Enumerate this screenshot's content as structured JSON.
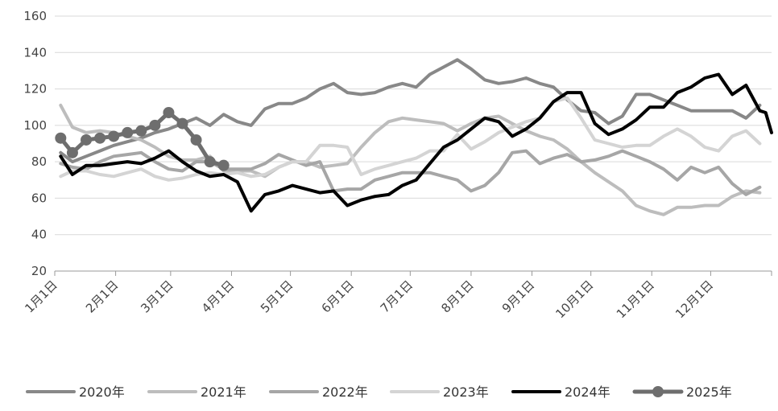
{
  "chart_data": {
    "type": "line",
    "title": "",
    "xlabel": "",
    "ylabel": "",
    "ylim": [
      20,
      160
    ],
    "yticks": [
      20,
      40,
      60,
      80,
      100,
      120,
      140,
      160
    ],
    "x_tick_labels": [
      "1月1日",
      "2月1日",
      "3月1日",
      "4月1日",
      "5月1日",
      "6月1日",
      "7月1日",
      "8月1日",
      "9月1日",
      "10月1日",
      "11月1日",
      "12月1日"
    ],
    "x_tick_days": [
      1,
      32,
      60,
      91,
      121,
      152,
      182,
      213,
      244,
      274,
      305,
      335
    ],
    "x_range_days": [
      1,
      366
    ],
    "grid": "horizontal",
    "legend_position": "bottom",
    "series": [
      {
        "name": "2020年",
        "color": "#888888",
        "marker": false,
        "points": [
          [
            4,
            85
          ],
          [
            10,
            80
          ],
          [
            17,
            83
          ],
          [
            24,
            86
          ],
          [
            31,
            89
          ],
          [
            38,
            91
          ],
          [
            45,
            93
          ],
          [
            52,
            96
          ],
          [
            59,
            98
          ],
          [
            66,
            101
          ],
          [
            73,
            104
          ],
          [
            80,
            100
          ],
          [
            87,
            106
          ],
          [
            94,
            102
          ],
          [
            101,
            100
          ],
          [
            108,
            109
          ],
          [
            115,
            112
          ],
          [
            122,
            112
          ],
          [
            129,
            115
          ],
          [
            136,
            120
          ],
          [
            143,
            123
          ],
          [
            150,
            118
          ],
          [
            157,
            117
          ],
          [
            164,
            118
          ],
          [
            171,
            121
          ],
          [
            178,
            123
          ],
          [
            185,
            121
          ],
          [
            192,
            128
          ],
          [
            199,
            132
          ],
          [
            206,
            136
          ],
          [
            213,
            131
          ],
          [
            220,
            125
          ],
          [
            227,
            123
          ],
          [
            234,
            124
          ],
          [
            241,
            126
          ],
          [
            248,
            123
          ],
          [
            255,
            121
          ],
          [
            262,
            114
          ],
          [
            269,
            108
          ],
          [
            276,
            107
          ],
          [
            283,
            101
          ],
          [
            290,
            105
          ],
          [
            297,
            117
          ],
          [
            304,
            117
          ],
          [
            311,
            114
          ],
          [
            318,
            111
          ],
          [
            325,
            108
          ],
          [
            332,
            108
          ],
          [
            339,
            108
          ],
          [
            346,
            108
          ],
          [
            353,
            104
          ],
          [
            360,
            111
          ]
        ]
      },
      {
        "name": "2021年",
        "color": "#bdbdbd",
        "marker": false,
        "points": [
          [
            4,
            111
          ],
          [
            10,
            99
          ],
          [
            17,
            96
          ],
          [
            24,
            97
          ],
          [
            31,
            96
          ],
          [
            38,
            94
          ],
          [
            45,
            92
          ],
          [
            52,
            88
          ],
          [
            59,
            83
          ],
          [
            66,
            81
          ],
          [
            73,
            81
          ],
          [
            80,
            83
          ],
          [
            87,
            75
          ],
          [
            94,
            75
          ],
          [
            101,
            75
          ],
          [
            108,
            72
          ],
          [
            115,
            77
          ],
          [
            122,
            80
          ],
          [
            129,
            80
          ],
          [
            136,
            77
          ],
          [
            143,
            78
          ],
          [
            150,
            79
          ],
          [
            157,
            88
          ],
          [
            164,
            96
          ],
          [
            171,
            102
          ],
          [
            178,
            104
          ],
          [
            185,
            103
          ],
          [
            192,
            102
          ],
          [
            199,
            101
          ],
          [
            206,
            97
          ],
          [
            213,
            101
          ],
          [
            220,
            104
          ],
          [
            227,
            105
          ],
          [
            234,
            101
          ],
          [
            241,
            97
          ],
          [
            248,
            94
          ],
          [
            255,
            92
          ],
          [
            262,
            87
          ],
          [
            269,
            80
          ],
          [
            276,
            74
          ],
          [
            283,
            69
          ],
          [
            290,
            64
          ],
          [
            297,
            56
          ],
          [
            304,
            53
          ],
          [
            311,
            51
          ],
          [
            318,
            55
          ],
          [
            325,
            55
          ],
          [
            332,
            56
          ],
          [
            339,
            56
          ],
          [
            346,
            61
          ],
          [
            353,
            64
          ],
          [
            360,
            63
          ]
        ]
      },
      {
        "name": "2022年",
        "color": "#a6a6a6",
        "marker": false,
        "points": [
          [
            4,
            79
          ],
          [
            10,
            77
          ],
          [
            17,
            76
          ],
          [
            24,
            80
          ],
          [
            31,
            83
          ],
          [
            38,
            84
          ],
          [
            45,
            85
          ],
          [
            52,
            80
          ],
          [
            59,
            76
          ],
          [
            66,
            75
          ],
          [
            73,
            80
          ],
          [
            80,
            80
          ],
          [
            87,
            76
          ],
          [
            94,
            76
          ],
          [
            101,
            76
          ],
          [
            108,
            79
          ],
          [
            115,
            84
          ],
          [
            122,
            81
          ],
          [
            129,
            78
          ],
          [
            136,
            80
          ],
          [
            143,
            64
          ],
          [
            150,
            65
          ],
          [
            157,
            65
          ],
          [
            164,
            70
          ],
          [
            171,
            72
          ],
          [
            178,
            74
          ],
          [
            185,
            74
          ],
          [
            192,
            74
          ],
          [
            199,
            72
          ],
          [
            206,
            70
          ],
          [
            213,
            64
          ],
          [
            220,
            67
          ],
          [
            227,
            74
          ],
          [
            234,
            85
          ],
          [
            241,
            86
          ],
          [
            248,
            79
          ],
          [
            255,
            82
          ],
          [
            262,
            84
          ],
          [
            269,
            80
          ],
          [
            276,
            81
          ],
          [
            283,
            83
          ],
          [
            290,
            86
          ],
          [
            297,
            83
          ],
          [
            304,
            80
          ],
          [
            311,
            76
          ],
          [
            318,
            70
          ],
          [
            325,
            77
          ],
          [
            332,
            74
          ],
          [
            339,
            77
          ],
          [
            346,
            68
          ],
          [
            353,
            62
          ],
          [
            360,
            66
          ]
        ]
      },
      {
        "name": "2023年",
        "color": "#d4d4d4",
        "marker": false,
        "points": [
          [
            4,
            72
          ],
          [
            10,
            75
          ],
          [
            17,
            75
          ],
          [
            24,
            73
          ],
          [
            31,
            72
          ],
          [
            38,
            74
          ],
          [
            45,
            76
          ],
          [
            52,
            72
          ],
          [
            59,
            70
          ],
          [
            66,
            71
          ],
          [
            73,
            73
          ],
          [
            80,
            74
          ],
          [
            87,
            73
          ],
          [
            94,
            74
          ],
          [
            101,
            72
          ],
          [
            108,
            73
          ],
          [
            115,
            77
          ],
          [
            122,
            80
          ],
          [
            129,
            80
          ],
          [
            136,
            89
          ],
          [
            143,
            89
          ],
          [
            150,
            88
          ],
          [
            157,
            73
          ],
          [
            164,
            76
          ],
          [
            171,
            78
          ],
          [
            178,
            80
          ],
          [
            185,
            82
          ],
          [
            192,
            86
          ],
          [
            199,
            86
          ],
          [
            206,
            95
          ],
          [
            213,
            87
          ],
          [
            220,
            91
          ],
          [
            227,
            96
          ],
          [
            234,
            99
          ],
          [
            241,
            102
          ],
          [
            248,
            104
          ],
          [
            255,
            113
          ],
          [
            262,
            115
          ],
          [
            269,
            104
          ],
          [
            276,
            92
          ],
          [
            283,
            90
          ],
          [
            290,
            88
          ],
          [
            297,
            89
          ],
          [
            304,
            89
          ],
          [
            311,
            94
          ],
          [
            318,
            98
          ],
          [
            325,
            94
          ],
          [
            332,
            88
          ],
          [
            339,
            86
          ],
          [
            346,
            94
          ],
          [
            353,
            97
          ],
          [
            360,
            90
          ]
        ]
      },
      {
        "name": "2024年",
        "color": "#000000",
        "marker": false,
        "points": [
          [
            4,
            83
          ],
          [
            10,
            73
          ],
          [
            17,
            78
          ],
          [
            24,
            78
          ],
          [
            31,
            79
          ],
          [
            38,
            80
          ],
          [
            45,
            79
          ],
          [
            52,
            82
          ],
          [
            59,
            86
          ],
          [
            66,
            80
          ],
          [
            73,
            75
          ],
          [
            80,
            72
          ],
          [
            87,
            73
          ],
          [
            94,
            69
          ],
          [
            101,
            53
          ],
          [
            108,
            62
          ],
          [
            115,
            64
          ],
          [
            122,
            67
          ],
          [
            129,
            65
          ],
          [
            136,
            63
          ],
          [
            143,
            64
          ],
          [
            150,
            56
          ],
          [
            157,
            59
          ],
          [
            164,
            61
          ],
          [
            171,
            62
          ],
          [
            178,
            67
          ],
          [
            185,
            70
          ],
          [
            192,
            79
          ],
          [
            199,
            88
          ],
          [
            206,
            92
          ],
          [
            213,
            98
          ],
          [
            220,
            104
          ],
          [
            227,
            102
          ],
          [
            234,
            94
          ],
          [
            241,
            98
          ],
          [
            248,
            104
          ],
          [
            255,
            113
          ],
          [
            262,
            118
          ],
          [
            269,
            118
          ],
          [
            276,
            101
          ],
          [
            283,
            95
          ],
          [
            290,
            98
          ],
          [
            297,
            103
          ],
          [
            304,
            110
          ],
          [
            311,
            110
          ],
          [
            318,
            118
          ],
          [
            325,
            121
          ],
          [
            332,
            126
          ],
          [
            339,
            128
          ],
          [
            346,
            117
          ],
          [
            353,
            122
          ],
          [
            360,
            108
          ],
          [
            363,
            107
          ],
          [
            366,
            96
          ]
        ]
      },
      {
        "name": "2025年",
        "color": "#6e6e6e",
        "marker": true,
        "points": [
          [
            4,
            93
          ],
          [
            10,
            85
          ],
          [
            17,
            92
          ],
          [
            24,
            93
          ],
          [
            31,
            94
          ],
          [
            38,
            96
          ],
          [
            45,
            97
          ],
          [
            52,
            100
          ],
          [
            59,
            107
          ],
          [
            66,
            101
          ],
          [
            73,
            92
          ],
          [
            80,
            80
          ],
          [
            87,
            78
          ]
        ]
      }
    ]
  }
}
